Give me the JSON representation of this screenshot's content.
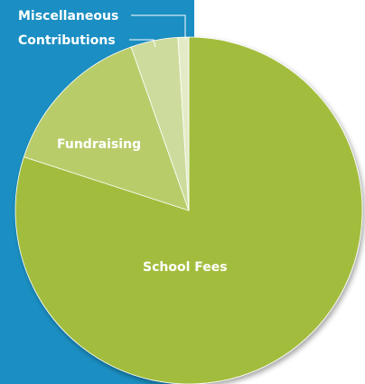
{
  "colors": {
    "panel": "#1b8fc3",
    "school_fees": "#a2bd3e",
    "fundraising": "#b8cd6a",
    "contributions": "#cddc9c",
    "miscellaneous": "#e3ebc6"
  },
  "chart_data": {
    "type": "pie",
    "title": "",
    "slices": [
      {
        "label": "School Fees",
        "value": 80.0,
        "color": "#a2bd3e"
      },
      {
        "label": "Fundraising",
        "value": 14.6,
        "color": "#b8cd6a"
      },
      {
        "label": "Contributions",
        "value": 4.4,
        "color": "#cddc9c"
      },
      {
        "label": "Miscellaneous",
        "value": 1.0,
        "color": "#e3ebc6"
      }
    ],
    "start": "12 o'clock",
    "direction": "clockwise"
  }
}
